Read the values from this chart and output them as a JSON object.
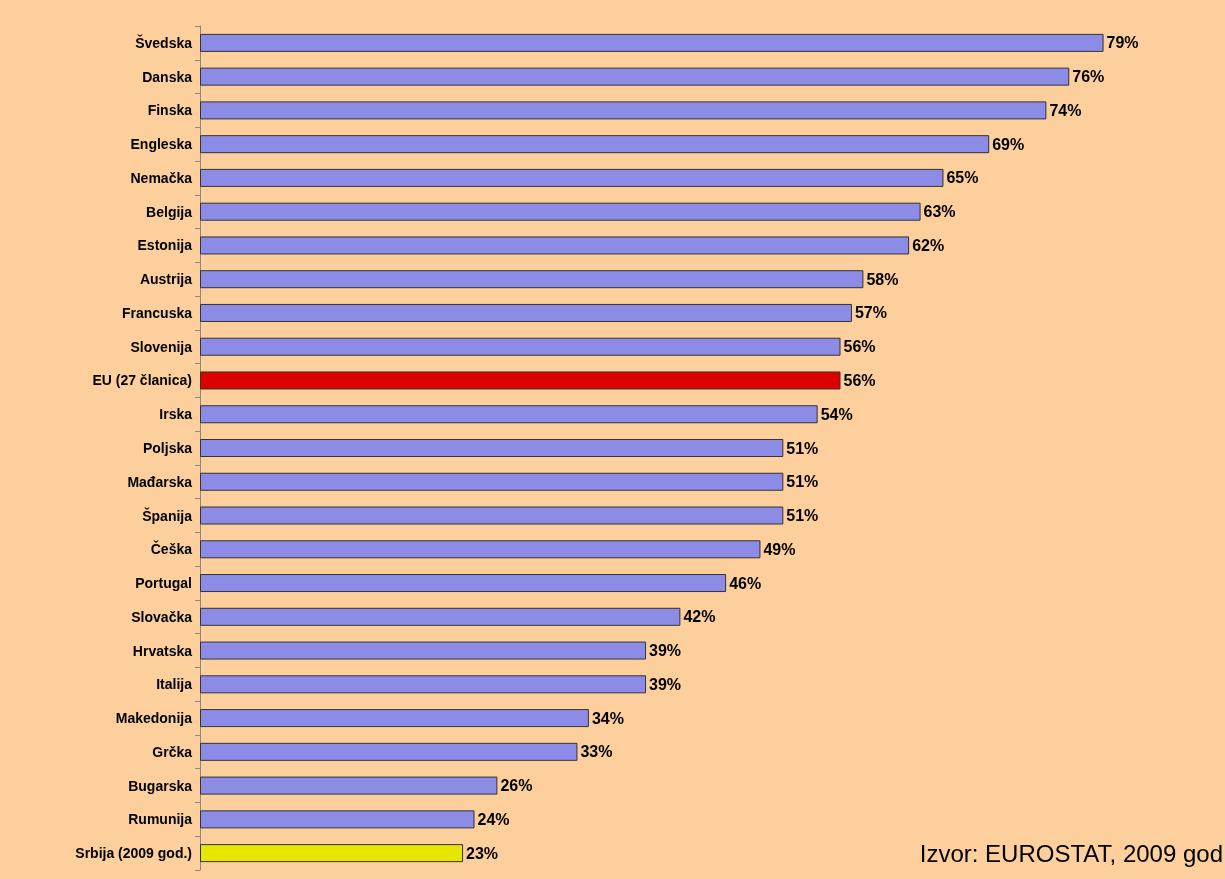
{
  "chart_data": {
    "type": "bar",
    "orientation": "horizontal",
    "categories": [
      "Švedska",
      "Danska",
      "Finska",
      "Engleska",
      "Nemačka",
      "Belgija",
      "Estonija",
      "Austrija",
      "Francuska",
      "Slovenija",
      "EU (27 članica)",
      "Irska",
      "Poljska",
      "Mađarska",
      "Španija",
      "Češka",
      "Portugal",
      "Slovačka",
      "Hrvatska",
      "Italija",
      "Makedonija",
      "Grčka",
      "Bugarska",
      "Rumunija",
      "Srbija (2009 god.)"
    ],
    "values": [
      79,
      76,
      74,
      69,
      65,
      63,
      62,
      58,
      57,
      56,
      56,
      54,
      51,
      51,
      51,
      49,
      46,
      42,
      39,
      39,
      34,
      33,
      26,
      24,
      23
    ],
    "value_labels": [
      "79%",
      "76%",
      "74%",
      "69%",
      "65%",
      "63%",
      "62%",
      "58%",
      "57%",
      "56%",
      "56%",
      "54%",
      "51%",
      "51%",
      "51%",
      "49%",
      "46%",
      "42%",
      "39%",
      "39%",
      "34%",
      "33%",
      "26%",
      "24%",
      "23%"
    ],
    "colors": [
      "#8c8ce6",
      "#8c8ce6",
      "#8c8ce6",
      "#8c8ce6",
      "#8c8ce6",
      "#8c8ce6",
      "#8c8ce6",
      "#8c8ce6",
      "#8c8ce6",
      "#8c8ce6",
      "#dd0000",
      "#8c8ce6",
      "#8c8ce6",
      "#8c8ce6",
      "#8c8ce6",
      "#8c8ce6",
      "#8c8ce6",
      "#8c8ce6",
      "#8c8ce6",
      "#8c8ce6",
      "#8c8ce6",
      "#8c8ce6",
      "#8c8ce6",
      "#8c8ce6",
      "#e6e600"
    ],
    "tick_labels": "y",
    "grid": false,
    "annotations": [
      "Izvor: EUROSTAT, 2009 god"
    ]
  }
}
